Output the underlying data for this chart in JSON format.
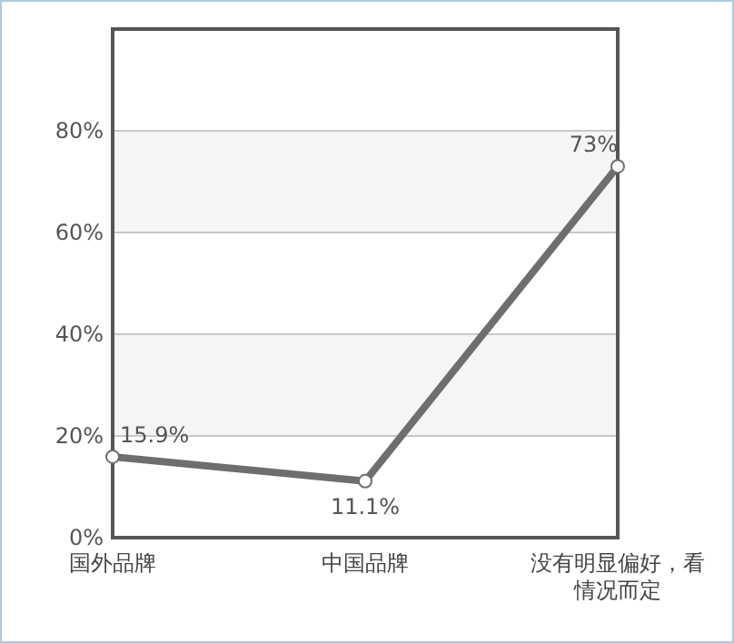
{
  "chart_data": {
    "type": "line",
    "categories": [
      "国外品牌",
      "中国品牌",
      "没有明显偏好，看情况而定"
    ],
    "series": [
      {
        "color": "#6e6e6e",
        "values": [
          15.9,
          11.1,
          73
        ],
        "value_labels": [
          "15.9%",
          "11.1%",
          "73%"
        ]
      }
    ],
    "ylim": [
      0,
      100
    ],
    "yticks": [
      {
        "value": 0,
        "label": "0%"
      },
      {
        "value": 20,
        "label": "20%"
      },
      {
        "value": 40,
        "label": "40%"
      },
      {
        "value": 60,
        "label": "60%"
      },
      {
        "value": 80,
        "label": "80%"
      }
    ],
    "bands": [
      {
        "axis": "y",
        "from": 20,
        "to": 40,
        "color": "#f5f5f5"
      },
      {
        "axis": "y",
        "from": 60,
        "to": 80,
        "color": "#f5f5f5"
      }
    ],
    "grid": "y",
    "marker": "circle",
    "line_style": "solid"
  }
}
